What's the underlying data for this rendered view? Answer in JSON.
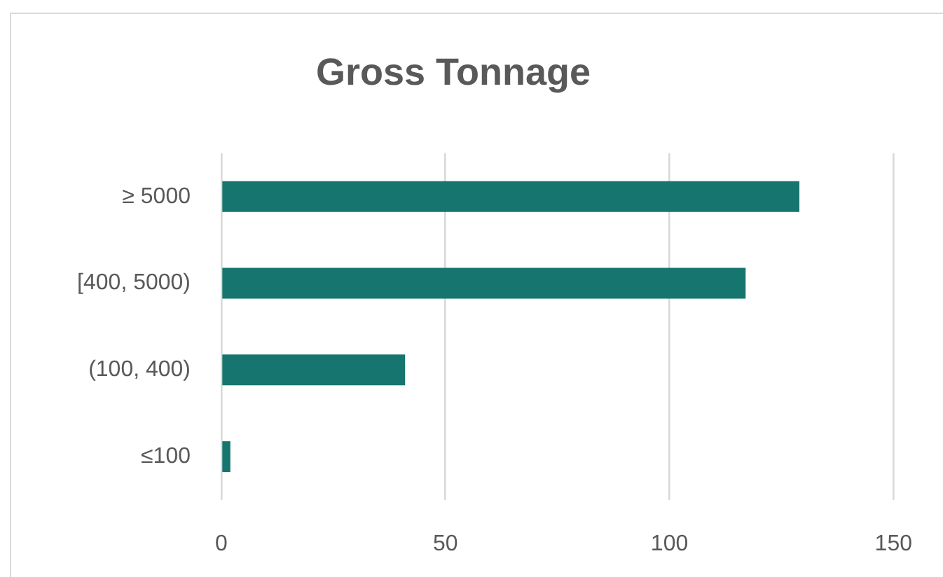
{
  "chart_data": {
    "type": "bar",
    "orientation": "horizontal",
    "title": "Gross Tonnage",
    "categories": [
      "≥ 5000",
      "[400, 5000)",
      "(100, 400)",
      "≤100"
    ],
    "values": [
      129,
      117,
      41,
      2
    ],
    "color": "#16756e",
    "xlim": [
      0,
      150
    ],
    "xticks": [
      0,
      50,
      100,
      150
    ],
    "grid": "x"
  }
}
